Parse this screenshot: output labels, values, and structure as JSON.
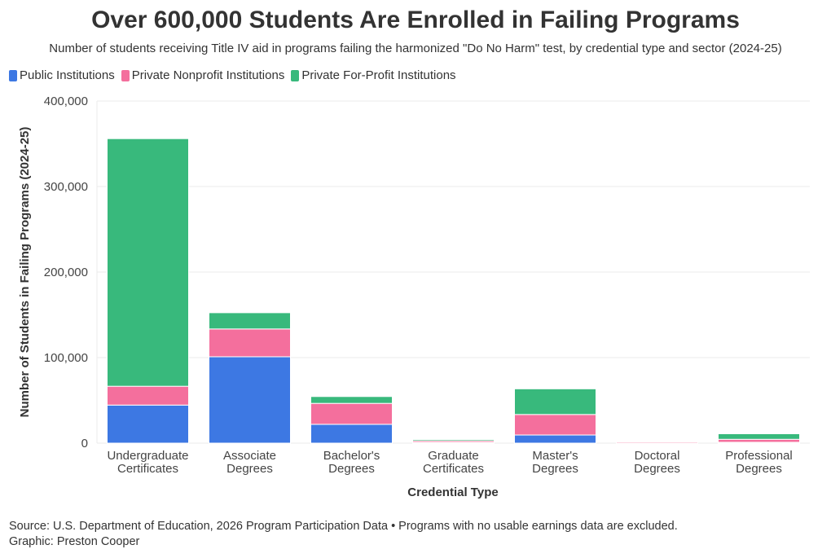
{
  "chart_data": {
    "type": "bar",
    "stacked": true,
    "title": "Over 600,000 Students Are Enrolled in Failing Programs",
    "subtitle": "Number of students receiving Title IV aid in programs failing the harmonized \"Do No Harm\" test, by credential type and sector (2024-25)",
    "xlabel": "Credential Type",
    "ylabel": "Number of Students in Failing Programs (2024-25)",
    "ylim": [
      0,
      400000
    ],
    "yticks": [
      {
        "value": 0,
        "label": "0"
      },
      {
        "value": 100000,
        "label": "100,000"
      },
      {
        "value": 200000,
        "label": "200,000"
      },
      {
        "value": 300000,
        "label": "300,000"
      },
      {
        "value": 400000,
        "label": "400,000"
      }
    ],
    "categories": [
      [
        "Undergraduate",
        "Certificates"
      ],
      [
        "Associate",
        "Degrees"
      ],
      [
        "Bachelor's",
        "Degrees"
      ],
      [
        "Graduate",
        "Certificates"
      ],
      [
        "Master's",
        "Degrees"
      ],
      [
        "Doctoral",
        "Degrees"
      ],
      [
        "Professional",
        "Degrees"
      ]
    ],
    "series": [
      {
        "name": "Public Institutions",
        "color": "#3d78e3",
        "values": [
          44500,
          101000,
          22000,
          1000,
          9500,
          200,
          1000
        ]
      },
      {
        "name": "Private Nonprofit Institutions",
        "color": "#f46f9d",
        "values": [
          22000,
          32500,
          24500,
          1800,
          24000,
          1300,
          3500
        ]
      },
      {
        "name": "Private For-Profit Institutions",
        "color": "#38b97c",
        "values": [
          289500,
          19000,
          8000,
          1500,
          30000,
          200,
          6500
        ]
      }
    ],
    "legend_position": "top-left",
    "grid": true
  },
  "footer": {
    "source": "Source: U.S. Department of Education, 2026 Program Participation Data • Programs with no usable earnings data are excluded.",
    "credit": "Graphic: Preston Cooper"
  }
}
